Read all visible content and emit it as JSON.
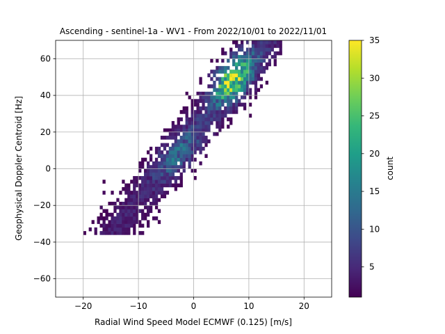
{
  "chart_data": {
    "type": "heatmap",
    "title": "Ascending - sentinel-1a - WV1 - From 2022/10/01 to 2022/11/01",
    "xlabel": "Radial Wind Speed Model ECMWF (0.125) [m/s]",
    "ylabel": "Geophysical Doppler Centroid [Hz]",
    "xlim": [
      -25,
      25
    ],
    "ylim": [
      -70,
      70
    ],
    "xticks": [
      -20,
      -10,
      0,
      10,
      20
    ],
    "yticks": [
      -60,
      -40,
      -20,
      0,
      20,
      40,
      60
    ],
    "grid": true,
    "colormap": "viridis",
    "colorbar": {
      "label": "count",
      "min": 1,
      "max": 35,
      "ticks": [
        5,
        10,
        15,
        20,
        25,
        30,
        35
      ]
    },
    "bin_size": {
      "x": 0.5,
      "y": 2
    },
    "distribution": {
      "description_of_cluster": "elongated positive-slope cloud",
      "x_range": [
        -20,
        16
      ],
      "y_range": [
        -36,
        70
      ],
      "slope_hz_per_ms": 3.7,
      "intercept_hz": 20,
      "peak": {
        "x": 6,
        "y": 50,
        "count": 33
      },
      "secondary_peak": {
        "x": -2,
        "y": 5,
        "count": 14
      }
    }
  },
  "colors": {
    "viridis": [
      "#440154",
      "#482878",
      "#3e4989",
      "#31688e",
      "#26828e",
      "#1f9e89",
      "#35b779",
      "#6ece58",
      "#b5de2b",
      "#fde725"
    ],
    "grid": "#b0b0b0",
    "axes": "#000000"
  }
}
